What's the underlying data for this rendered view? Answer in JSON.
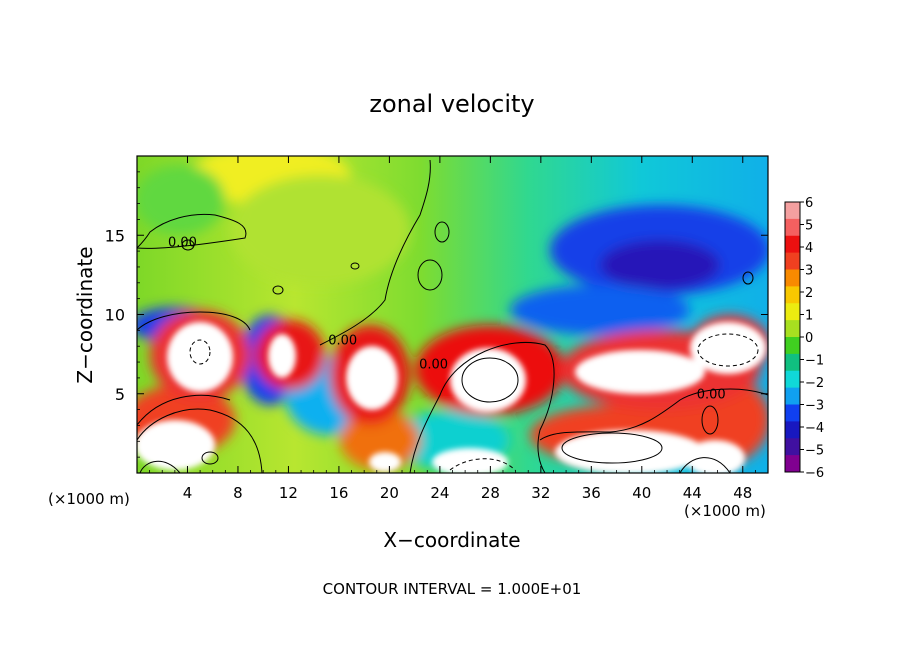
{
  "chart_data": {
    "type": "heatmap",
    "title": "zonal velocity",
    "xlabel": "X−coordinate",
    "ylabel": "Z−coordinate",
    "x_unit_left": "(×1000 m)",
    "x_unit_right": "(×1000 m)",
    "footer": "CONTOUR INTERVAL = 1.000E+01",
    "xlim": [
      0,
      50
    ],
    "ylim": [
      0,
      20
    ],
    "x_ticks": [
      "4",
      "8",
      "12",
      "16",
      "20",
      "24",
      "28",
      "32",
      "36",
      "40",
      "44",
      "48"
    ],
    "x_tick_values": [
      4,
      8,
      12,
      16,
      20,
      24,
      28,
      32,
      36,
      40,
      44,
      48
    ],
    "y_ticks": [
      "5",
      "10",
      "15"
    ],
    "y_tick_values": [
      5,
      10,
      15
    ],
    "contour_labels": [
      {
        "text": "0.00",
        "x": 3.6,
        "z": 14.3
      },
      {
        "text": "0.00",
        "x": 16.3,
        "z": 8.1
      },
      {
        "text": "0.00",
        "x": 23.5,
        "z": 6.6
      },
      {
        "text": "0.00",
        "x": 45.5,
        "z": 4.7
      }
    ],
    "colorbar": {
      "ticks": [
        "6",
        "5",
        "4",
        "3",
        "2",
        "1",
        "0",
        "−1",
        "−2",
        "−3",
        "−4",
        "−5",
        "−6"
      ],
      "tick_values": [
        6,
        5,
        4,
        3,
        2,
        1,
        0,
        -1,
        -2,
        -3,
        -4,
        -5,
        -6
      ],
      "colors": [
        "#f4a0a0",
        "#f46060",
        "#ec1010",
        "#f04020",
        "#f88a00",
        "#f8c800",
        "#ecec10",
        "#a8e020",
        "#40d020",
        "#10c080",
        "#10d8d8",
        "#10a0f0",
        "#1040f0",
        "#1818c0",
        "#4010a0",
        "#800090"
      ]
    }
  }
}
